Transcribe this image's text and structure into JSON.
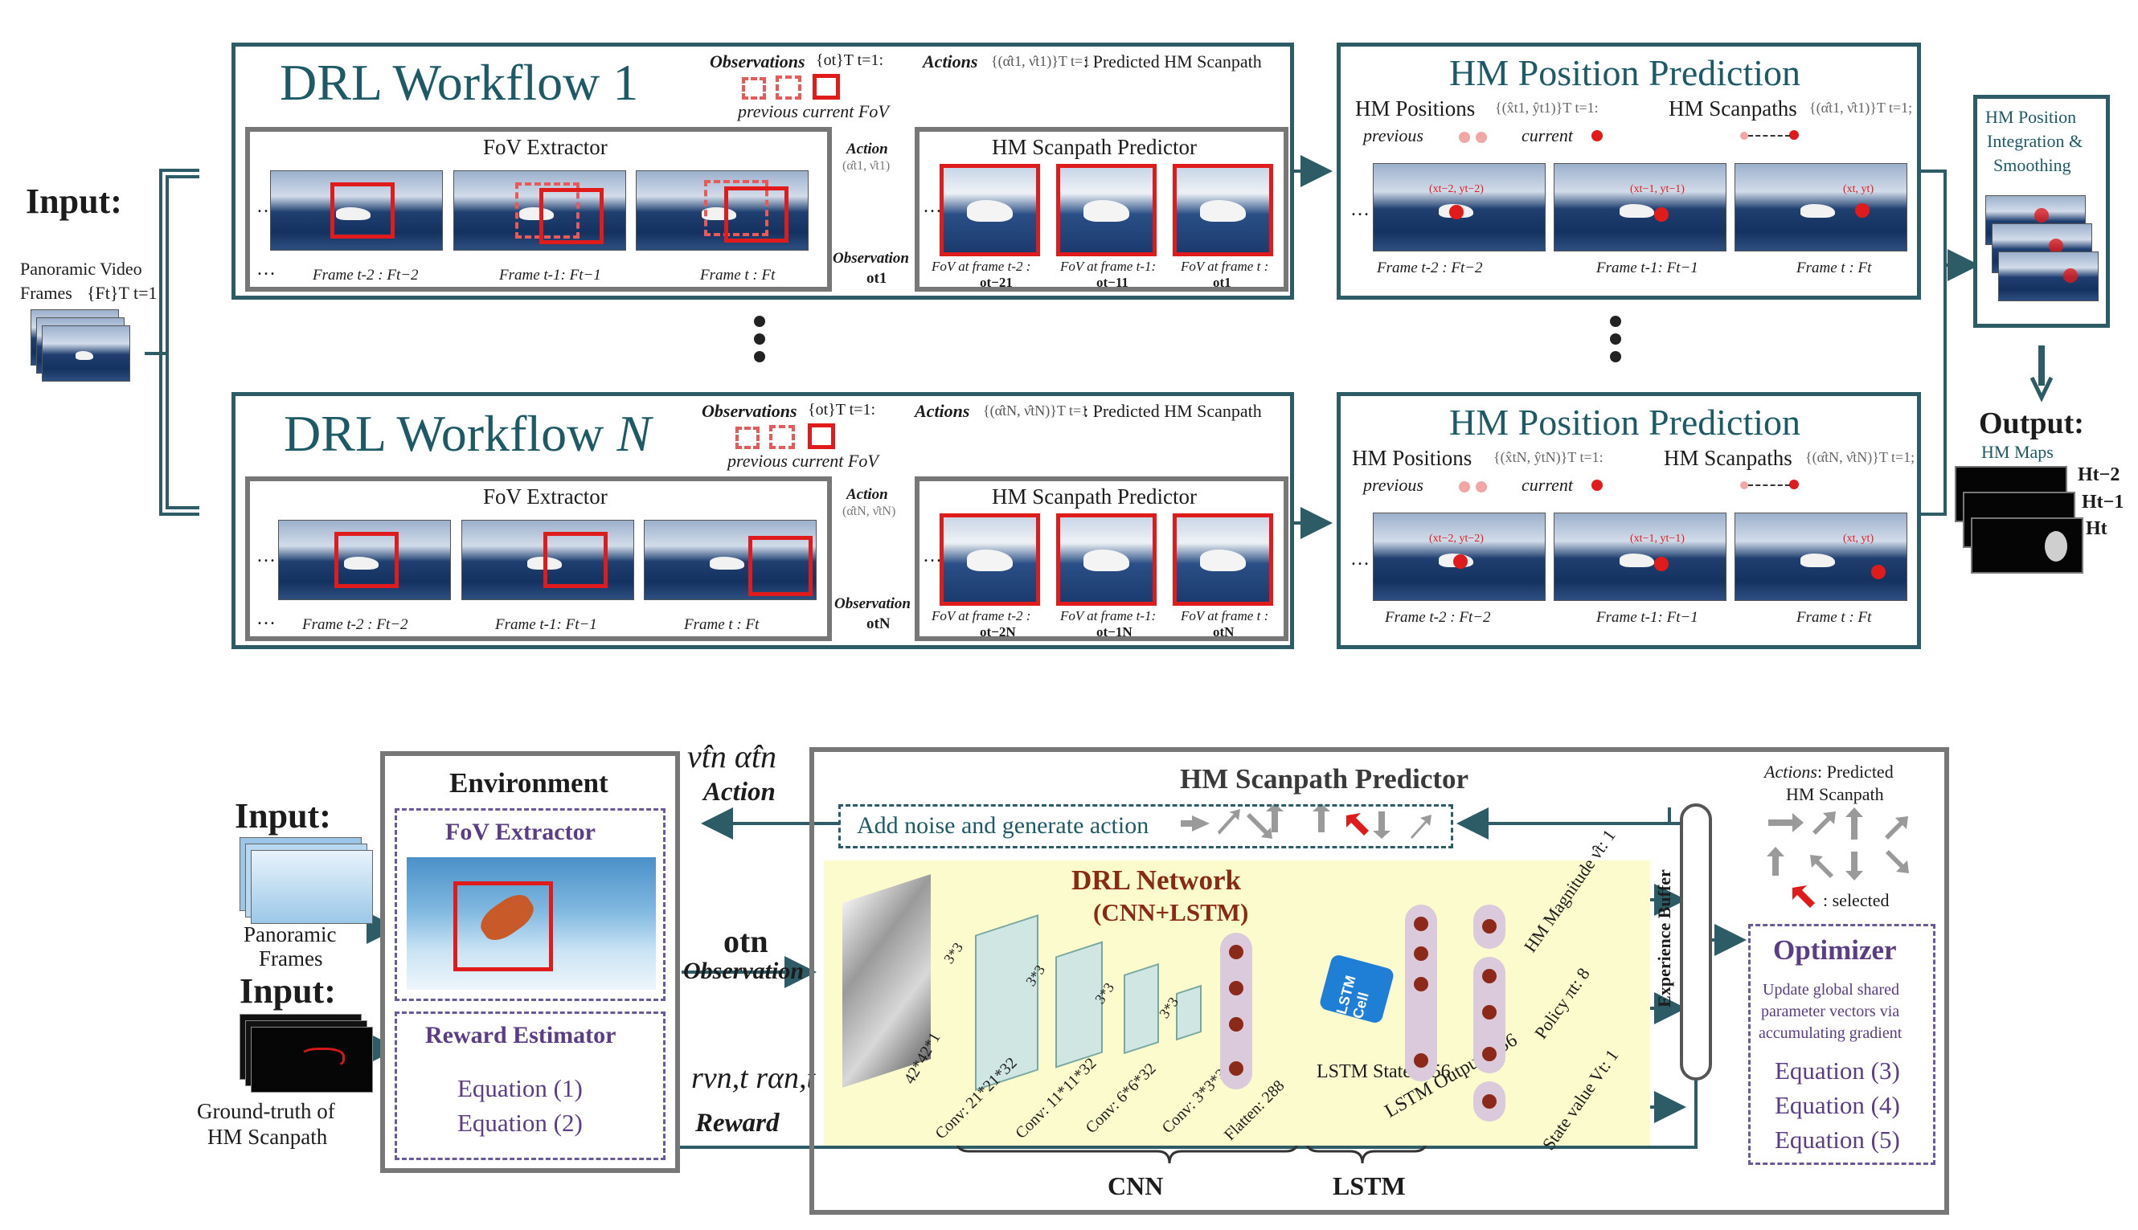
{
  "input_top": {
    "label": "Input:",
    "frames_caption_line1": "Panoramic Video",
    "frames_caption_line2": "Frames",
    "frames_math": "{Ft}T t=1"
  },
  "workflow_1": {
    "title": "DRL Workflow 1",
    "observations_label": "Observations",
    "observations_math": "{ot}T t=1:",
    "prev_current_fov": "previous current FoV",
    "actions_label": "Actions",
    "actions_math": "{(α̂t1, ν̂t1)}T t=1",
    "actions_suffix": ": Predicted HM Scanpath",
    "fov_extractor_title": "FoV Extractor",
    "frames": [
      "Frame t-2 : Ft−2",
      "Frame t-1: Ft−1",
      "Frame t : Ft"
    ],
    "action_label": "Action",
    "action_math": "(α̂t1, ν̂t1)",
    "observation_label": "Observation",
    "observation_math": "ot1",
    "scanpath_title": "HM Scanpath Predictor",
    "fov_captions": [
      "FoV at frame t-2 :",
      "FoV at frame t-1:",
      "FoV at frame t :"
    ],
    "fov_math": [
      "ot−21",
      "ot−11",
      "ot1"
    ]
  },
  "workflow_n": {
    "title_prefix": "DRL Workflow ",
    "title_n": "N",
    "observations_label": "Observations",
    "observations_math": "{ot}T t=1:",
    "prev_current_fov": "previous current FoV",
    "actions_label": "Actions",
    "actions_math": "{(α̂tN, ν̂tN)}T t=1",
    "actions_suffix": ": Predicted HM Scanpath",
    "fov_extractor_title": "FoV Extractor",
    "frames": [
      "Frame t-2 : Ft−2",
      "Frame t-1: Ft−1",
      "Frame t : Ft"
    ],
    "action_label": "Action",
    "action_math": "(α̂tN, ν̂tN)",
    "observation_label": "Observation",
    "observation_math": "otN",
    "scanpath_title": "HM Scanpath Predictor",
    "fov_captions": [
      "FoV at frame t-2 :",
      "FoV at frame t-1:",
      "FoV at frame t :"
    ],
    "fov_math": [
      "ot−2N",
      "ot−1N",
      "otN"
    ]
  },
  "hm_position_1": {
    "title": "HM Position Prediction",
    "positions_label": "HM Positions",
    "positions_math": "{(x̂t1, ŷt1)}T t=1:",
    "scanpaths_label": "HM Scanpaths",
    "scanpaths_math": "{(α̂t1, ν̂t1)}T t=1;",
    "previous": "previous",
    "current": "current",
    "frames": [
      "Frame t-2 : Ft−2",
      "Frame t-1: Ft−1",
      "Frame t : Ft"
    ],
    "coord_labels": [
      "(xt−2, yt−2)",
      "(xt−1, yt−1)",
      "(xt, yt)"
    ]
  },
  "hm_position_n": {
    "title": "HM Position Prediction",
    "positions_label": "HM Positions",
    "positions_math": "{(x̂tN, ŷtN)}T t=1:",
    "scanpaths_label": "HM Scanpaths",
    "scanpaths_math": "{(α̂tN, ν̂tN)}T t=1;",
    "previous": "previous",
    "current": "current",
    "frames": [
      "Frame t-2 : Ft−2",
      "Frame t-1: Ft−1",
      "Frame t : Ft"
    ],
    "coord_labels": [
      "(xt−2, yt−2)",
      "(xt−1, yt−1)",
      "(xt, yt)"
    ]
  },
  "integration": {
    "title_line1": "HM Position",
    "title_line2": "Integration &",
    "title_line3": "Smoothing"
  },
  "output": {
    "label": "Output:",
    "hm_maps": "HM Maps",
    "h_labels": [
      "Ht−2",
      "Ht−1",
      "Ht"
    ]
  },
  "bottom": {
    "environment_title": "Environment",
    "input1_label": "Input:",
    "input1_caption_line1": "Panoramic",
    "input1_caption_line2": "Frames",
    "input2_label": "Input:",
    "input2_caption_line1": "Ground-truth of",
    "input2_caption_line2": "HM Scanpath",
    "fov_extractor": "FoV Extractor",
    "reward_estimator": "Reward Estimator",
    "reward_eq1": "Equation (1)",
    "reward_eq2": "Equation (2)",
    "action_math": "ν̂tn  α̂tn",
    "action_label": "Action",
    "observation_math": "otn",
    "observation_label": "Observation",
    "reward_math": "rνn,t rαn,t",
    "reward_label": "Reward",
    "predictor_title": "HM Scanpath Predictor",
    "add_noise": "Add noise and generate action",
    "drl_network": "DRL Network",
    "drl_sub": "(CNN+LSTM)",
    "input_size": "42*42*1",
    "kernel_labels": [
      "3*3",
      "3*3",
      "3*3",
      "3*3"
    ],
    "conv_labels": [
      "Conv: 21*21*32",
      "Conv: 11*11*32",
      "Conv: 6*6*32",
      "Conv: 3*3*32"
    ],
    "flatten_label": "Flatten: 288",
    "lstm_cell": "LSTM Cell",
    "lstm_state": "LSTM State: 256",
    "lstm_output": "LSTM Output: 256",
    "hm_magnitude": "HM Magnitude ν̂t: 1",
    "policy": "Policy πt: 8",
    "state_value": "State value Vt: 1",
    "experience_buffer": "Experience Buffer",
    "cnn_brace": "CNN",
    "lstm_brace": "LSTM",
    "legend_actions": "Actions",
    "legend_predicted_line1": ": Predicted",
    "legend_predicted_line2": "HM Scanpath",
    "legend_selected": ": selected",
    "optimizer_title": "Optimizer",
    "optimizer_desc_line1": "Update global shared",
    "optimizer_desc_line2": "parameter vectors via",
    "optimizer_desc_line3": "accumulating gradient",
    "optimizer_eqs": [
      "Equation (3)",
      "Equation (4)",
      "Equation (5)"
    ]
  },
  "colors": {
    "teal_border": "#2d5b66",
    "gray_border": "#777777",
    "red": "#e01b1b",
    "purple": "#5a3d86",
    "yellow_bg": "#fbfbcd",
    "network_title": "#8a2a12"
  }
}
